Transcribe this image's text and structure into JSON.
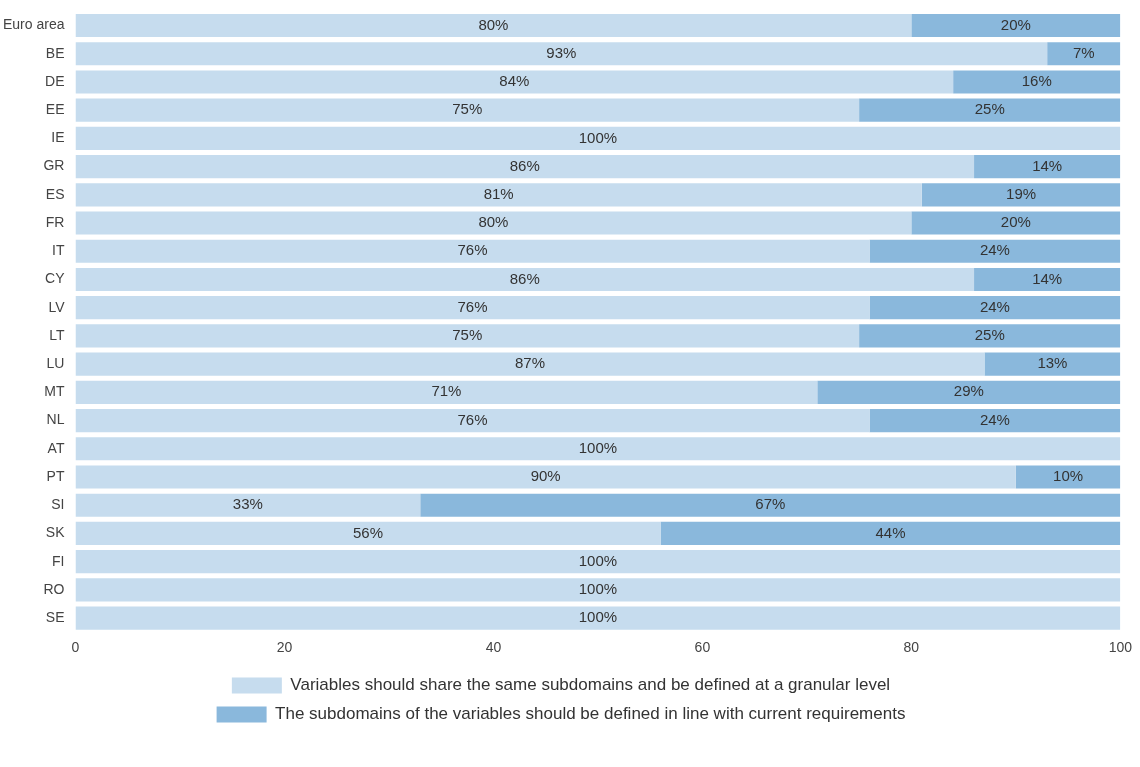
{
  "chart_data": {
    "type": "bar",
    "orientation": "horizontal",
    "stacked": true,
    "categories": [
      "Euro area",
      "BE",
      "DE",
      "EE",
      "IE",
      "GR",
      "ES",
      "FR",
      "IT",
      "CY",
      "LV",
      "LT",
      "LU",
      "MT",
      "NL",
      "AT",
      "PT",
      "SI",
      "SK",
      "FI",
      "RO",
      "SE"
    ],
    "series": [
      {
        "name": "Variables should share the same subdomains and be defined at a granular level",
        "color": "#c6dcee",
        "values": [
          80,
          93,
          84,
          75,
          100,
          86,
          81,
          80,
          76,
          86,
          76,
          75,
          87,
          71,
          76,
          100,
          90,
          33,
          56,
          100,
          100,
          100
        ],
        "value_labels": [
          "80%",
          "93%",
          "84%",
          "75%",
          "100%",
          "86%",
          "81%",
          "80%",
          "76%",
          "86%",
          "76%",
          "75%",
          "87%",
          "71%",
          "76%",
          "100%",
          "90%",
          "33%",
          "56%",
          "100%",
          "100%",
          "100%"
        ]
      },
      {
        "name": "The subdomains of the variables should be defined in line with current requirements",
        "color": "#8ab8dc",
        "values": [
          20,
          7,
          16,
          25,
          0,
          14,
          19,
          20,
          24,
          14,
          24,
          25,
          13,
          29,
          24,
          0,
          10,
          67,
          44,
          0,
          0,
          0
        ],
        "value_labels": [
          "20%",
          "7%",
          "16%",
          "25%",
          null,
          "14%",
          "19%",
          "20%",
          "24%",
          "14%",
          "24%",
          "25%",
          "13%",
          "29%",
          "24%",
          null,
          "10%",
          "67%",
          "44%",
          null,
          null,
          null
        ]
      }
    ],
    "xlim": [
      0,
      100
    ],
    "xticks": [
      0,
      20,
      40,
      60,
      80,
      100
    ],
    "grid": false,
    "legend": "bottom"
  }
}
